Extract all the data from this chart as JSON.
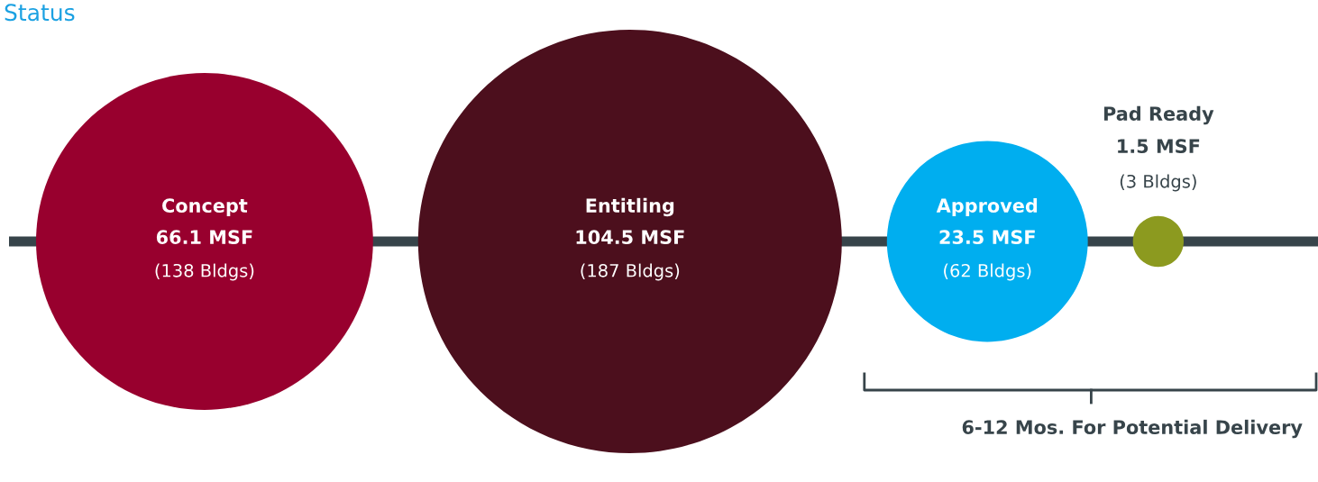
{
  "chart_data": {
    "type": "other",
    "title": "Status",
    "categories": [
      "Concept",
      "Entitling",
      "Approved",
      "Pad Ready"
    ],
    "values": [
      66.1,
      104.5,
      23.5,
      1.5
    ],
    "colors": [
      "#98002e",
      "#4c0f1d",
      "#00aeef",
      "#8c9a1f"
    ],
    "value_labels": [
      "66.1 MSF",
      "104.5 MSF",
      "23.5 MSF",
      "1.5 MSF"
    ],
    "annotations": [
      "(138 Bldgs)",
      "(187 Bldgs)",
      "(62 Bldgs)",
      "(3 Bldgs)",
      "6-12 Mos. For Potential Delivery"
    ]
  }
}
